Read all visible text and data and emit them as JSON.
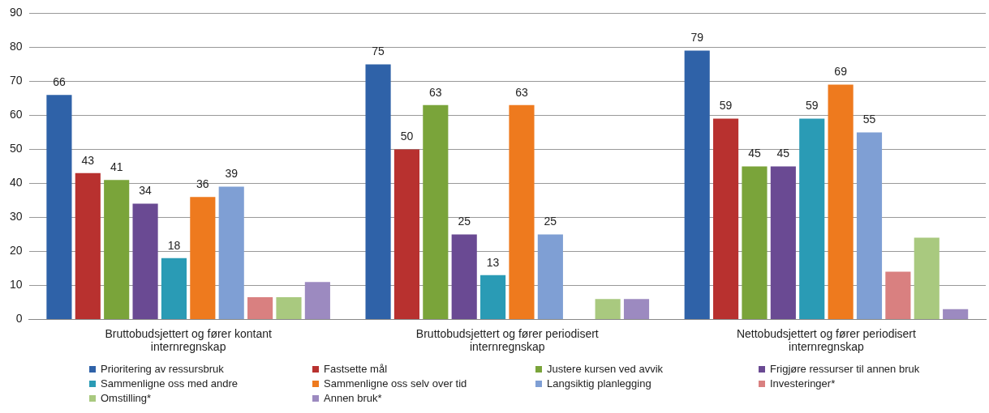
{
  "chart_data": {
    "type": "bar",
    "categories": [
      "Bruttobudsjettert og fører kontant internregnskap",
      "Bruttobudsjettert og fører periodisert internregnskap",
      "Nettobudsjettert og fører periodisert internregnskap"
    ],
    "series": [
      {
        "name": "Prioritering av ressursbruk",
        "color": "#2f62a8",
        "values": [
          66,
          75,
          79
        ],
        "value_labels": [
          "66",
          "75",
          "79"
        ]
      },
      {
        "name": "Fastsette mål",
        "color": "#b8312f",
        "values": [
          43,
          50,
          59
        ],
        "value_labels": [
          "43",
          "50",
          "59"
        ]
      },
      {
        "name": "Justere kursen ved avvik",
        "color": "#7aa43a",
        "values": [
          41,
          63,
          45
        ],
        "value_labels": [
          "41",
          "63",
          "45"
        ]
      },
      {
        "name": "Frigjøre ressurser til annen bruk",
        "color": "#6a4a93",
        "values": [
          34,
          25,
          45
        ],
        "value_labels": [
          "34",
          "25",
          "45"
        ]
      },
      {
        "name": "Sammenligne oss med andre",
        "color": "#2a9bb5",
        "values": [
          18,
          13,
          59
        ],
        "value_labels": [
          "18",
          "13",
          "59"
        ]
      },
      {
        "name": "Sammenligne oss selv over tid",
        "color": "#ee7a1e",
        "values": [
          36,
          63,
          69
        ],
        "value_labels": [
          "36",
          "63",
          "69"
        ]
      },
      {
        "name": "Langsiktig planlegging",
        "color": "#7f9fd4",
        "values": [
          39,
          25,
          55
        ],
        "value_labels": [
          "39",
          "25",
          "55"
        ]
      },
      {
        "name": "Investeringer*",
        "color": "#d98080",
        "values": [
          6.5,
          null,
          14
        ]
      },
      {
        "name": "Omstilling*",
        "color": "#a9c97f",
        "values": [
          6.5,
          6,
          24
        ]
      },
      {
        "name": "Annen bruk*",
        "color": "#9c8ac0",
        "values": [
          11,
          6,
          3
        ]
      }
    ],
    "ylim": [
      0,
      90
    ],
    "yticks": [
      0,
      10,
      20,
      30,
      40,
      50,
      60,
      70,
      80,
      90
    ],
    "grid": "y",
    "legend": "bottom"
  }
}
